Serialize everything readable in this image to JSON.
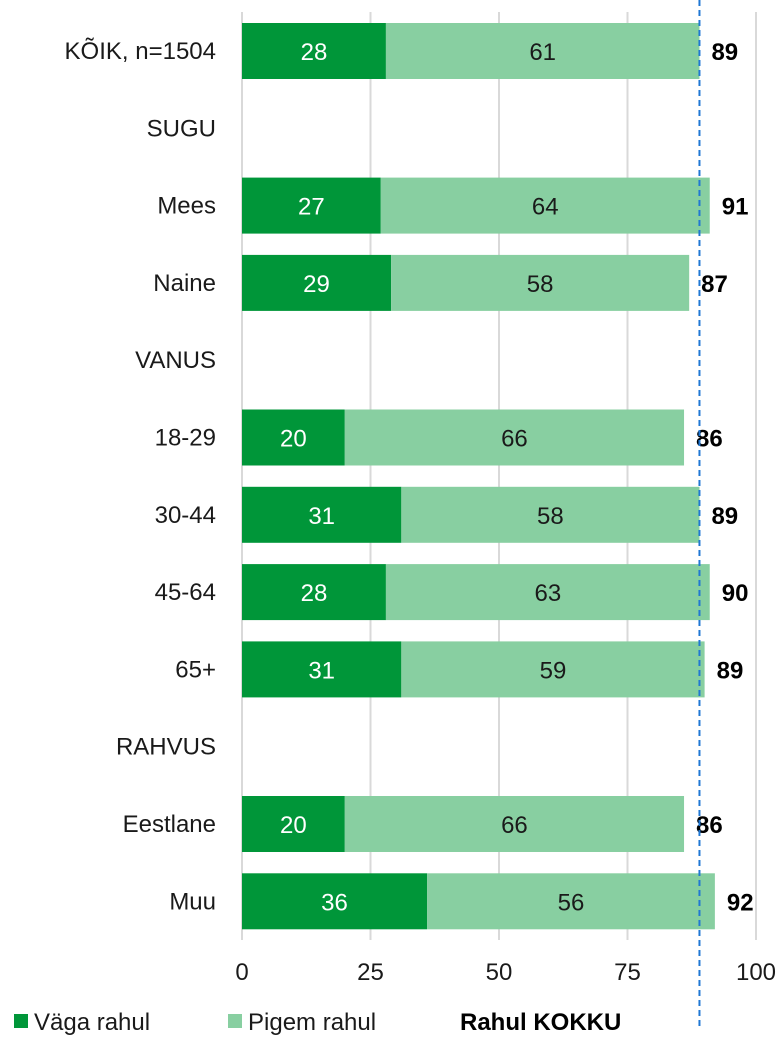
{
  "chart_data": {
    "type": "bar",
    "orientation": "horizontal",
    "stacked": true,
    "title": "",
    "xlabel": "",
    "ylabel": "",
    "xlim": [
      0,
      100
    ],
    "x_ticks": [
      0,
      25,
      50,
      75,
      100
    ],
    "grid": "vertical",
    "legend_position": "bottom",
    "reference_line": {
      "value": 89,
      "style": "dashed",
      "color": "#1f77d4"
    },
    "categories": [
      "KÕIK, n=1504",
      "SUGU",
      "Mees",
      "Naine",
      "VANUS",
      "18-29",
      "30-44",
      "45-64",
      "65+",
      "RAHVUS",
      "Eestlane",
      "Muu"
    ],
    "series": [
      {
        "name": "Väga rahul",
        "color": "#009639",
        "label_color": "#ffffff",
        "values": [
          28,
          null,
          27,
          29,
          null,
          20,
          31,
          28,
          31,
          null,
          20,
          36
        ]
      },
      {
        "name": "Pigem rahul",
        "color": "#88cfa1",
        "label_color": "#1a1a1a",
        "values": [
          61,
          null,
          64,
          58,
          null,
          66,
          58,
          63,
          59,
          null,
          66,
          56
        ]
      }
    ],
    "totals": {
      "name": "Rahul KOKKU",
      "values": [
        89,
        null,
        91,
        87,
        null,
        86,
        89,
        90,
        89,
        null,
        86,
        92
      ]
    }
  }
}
